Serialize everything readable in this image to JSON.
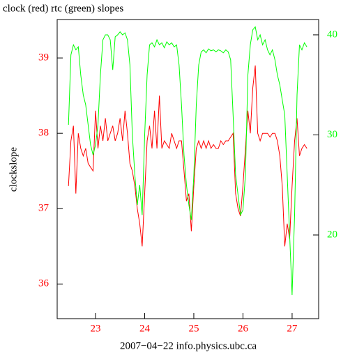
{
  "chart_data": {
    "type": "line",
    "title": "clock (red) rtc (green) slopes",
    "ylabel": "clockslope",
    "xlabel": "2007−04−22 info.physics.ubc.ca",
    "x": [
      22.45,
      22.5,
      22.55,
      22.6,
      22.65,
      22.7,
      22.75,
      22.8,
      22.85,
      22.9,
      22.95,
      23.0,
      23.05,
      23.1,
      23.15,
      23.2,
      23.25,
      23.3,
      23.35,
      23.4,
      23.45,
      23.5,
      23.55,
      23.6,
      23.65,
      23.7,
      23.75,
      23.8,
      23.85,
      23.9,
      23.95,
      24.0,
      24.05,
      24.1,
      24.15,
      24.2,
      24.25,
      24.3,
      24.35,
      24.4,
      24.45,
      24.5,
      24.55,
      24.6,
      24.65,
      24.7,
      24.75,
      24.8,
      24.85,
      24.9,
      24.95,
      25.0,
      25.05,
      25.1,
      25.15,
      25.2,
      25.25,
      25.3,
      25.35,
      25.4,
      25.45,
      25.5,
      25.55,
      25.6,
      25.65,
      25.7,
      25.75,
      25.8,
      25.85,
      25.9,
      25.95,
      26.0,
      26.05,
      26.1,
      26.15,
      26.2,
      26.25,
      26.3,
      26.35,
      26.4,
      26.45,
      26.5,
      26.55,
      26.6,
      26.65,
      26.7,
      26.75,
      26.8,
      26.85,
      26.9,
      26.95,
      27.0,
      27.05,
      27.1,
      27.15,
      27.2,
      27.25,
      27.3
    ],
    "series": [
      {
        "color": "#ff0000",
        "values": [
          37.3,
          37.9,
          38.1,
          37.2,
          38.0,
          37.8,
          37.7,
          37.8,
          37.6,
          37.55,
          37.5,
          38.3,
          37.8,
          38.1,
          37.9,
          38.2,
          37.9,
          38.0,
          38.1,
          37.9,
          38.0,
          38.2,
          37.9,
          38.3,
          38.0,
          37.6,
          37.5,
          37.3,
          37.0,
          36.8,
          36.5,
          37.2,
          37.9,
          38.1,
          37.8,
          38.3,
          37.8,
          38.5,
          37.8,
          37.9,
          37.85,
          37.8,
          38.0,
          37.9,
          37.8,
          37.9,
          37.9,
          37.5,
          37.1,
          37.2,
          36.7,
          37.3,
          37.8,
          37.9,
          37.8,
          37.9,
          37.8,
          37.9,
          37.8,
          37.85,
          37.8,
          37.8,
          37.9,
          37.85,
          37.9,
          37.9,
          37.95,
          38.0,
          37.2,
          37.0,
          36.9,
          37.3,
          37.8,
          38.3,
          38.0,
          38.6,
          38.9,
          38.0,
          37.9,
          38.0,
          38.0,
          38.0,
          37.95,
          38.0,
          38.0,
          37.9,
          37.7,
          37.3,
          36.5,
          36.8,
          36.6,
          37.3,
          37.9,
          38.2,
          37.7,
          37.8,
          37.85,
          37.8
        ]
      },
      {
        "color": "#00ff00",
        "axis": "y2",
        "values": [
          31,
          38,
          39,
          38.5,
          38.8,
          36,
          34,
          33,
          31,
          29,
          28,
          29,
          31,
          36,
          39.5,
          40,
          40,
          39.5,
          36.5,
          39.8,
          40,
          40.3,
          40,
          40.2,
          39.5,
          37,
          30,
          26,
          23,
          25,
          22,
          30,
          36,
          39,
          39.2,
          38.8,
          39.5,
          39,
          39.2,
          38.7,
          39.3,
          39,
          39.2,
          38.8,
          39,
          37,
          33,
          28,
          25,
          23,
          21.5,
          26,
          33,
          37,
          38.3,
          38.5,
          38.2,
          38.6,
          38.4,
          38.5,
          38.3,
          38.5,
          38.4,
          38.2,
          38.5,
          38.3,
          37.5,
          32,
          26,
          24,
          22,
          22.5,
          26,
          36,
          39,
          40.5,
          40.8,
          39.5,
          40,
          39,
          39.5,
          38.5,
          38,
          38.5,
          37.5,
          36,
          35,
          33.5,
          32,
          26,
          20,
          14,
          22,
          34,
          39,
          38.5,
          39.2,
          38.8
        ]
      }
    ],
    "xlim": [
      22.22,
      27.54
    ],
    "xticks": [
      23,
      24,
      25,
      26,
      27
    ],
    "ylim": [
      35.54,
      39.51
    ],
    "yticks": [
      36,
      37,
      38,
      39
    ],
    "y2lim": [
      11.64,
      41.53
    ],
    "y2ticks": [
      20,
      30,
      40
    ],
    "grid": false
  }
}
